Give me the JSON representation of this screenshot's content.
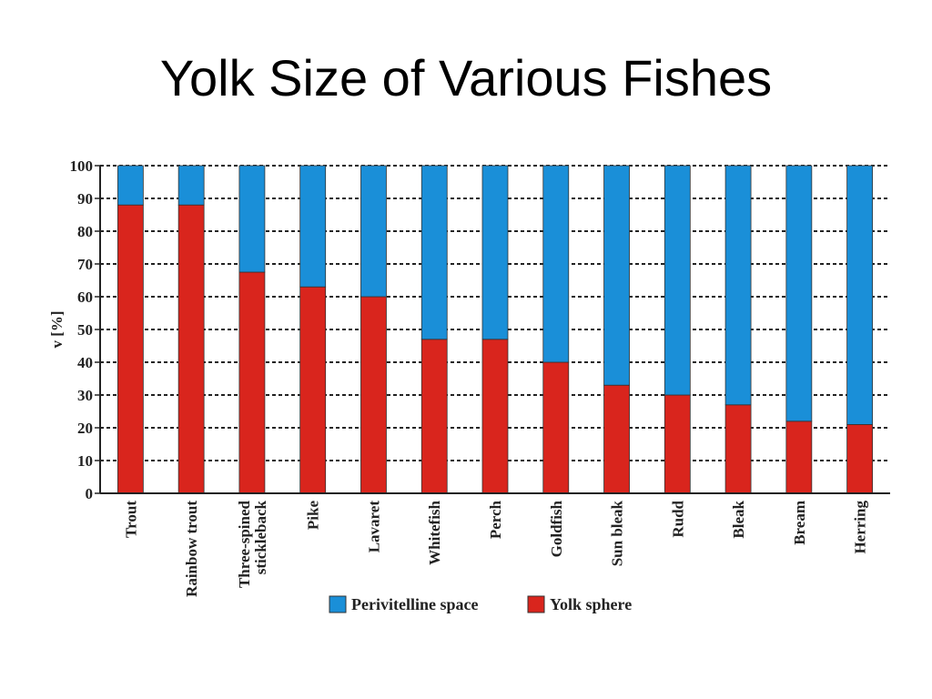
{
  "slide": {
    "title": "Yolk Size of Various Fishes"
  },
  "colors": {
    "perivitelline": "#1a8fd8",
    "yolk": "#d9251d",
    "grid": "#222222",
    "axis": "#222222"
  },
  "chart_data": {
    "type": "bar",
    "stacked": true,
    "title": "",
    "xlabel": "",
    "ylabel": "v [%]",
    "ylim": [
      0,
      100
    ],
    "yticks": [
      0,
      10,
      20,
      30,
      40,
      50,
      60,
      70,
      80,
      90,
      100
    ],
    "grid": "horizontal dashed",
    "legend_position": "bottom",
    "categories": [
      "Trout",
      "Rainbow trout",
      "Three-spined stickleback",
      "Pike",
      "Lavaret",
      "Whitefish",
      "Perch",
      "Goldfish",
      "Sun bleak",
      "Rudd",
      "Bleak",
      "Bream",
      "Herring"
    ],
    "category_lines": [
      [
        "Trout"
      ],
      [
        "Rainbow trout"
      ],
      [
        "Three-spined",
        "stickleback"
      ],
      [
        "Pike"
      ],
      [
        "Lavaret"
      ],
      [
        "Whitefish"
      ],
      [
        "Perch"
      ],
      [
        "Goldfish"
      ],
      [
        "Sun bleak"
      ],
      [
        "Rudd"
      ],
      [
        "Bleak"
      ],
      [
        "Bream"
      ],
      [
        "Herring"
      ]
    ],
    "series": [
      {
        "name": "Yolk sphere",
        "color": "#d9251d",
        "values": [
          88,
          88,
          67.5,
          63,
          60,
          47,
          47,
          40,
          33,
          30,
          27,
          22,
          21
        ]
      },
      {
        "name": "Perivitelline space",
        "color": "#1a8fd8",
        "values": [
          12,
          12,
          32.5,
          37,
          40,
          53,
          53,
          60,
          67,
          70,
          73,
          78,
          79
        ]
      }
    ],
    "legend_order": [
      "Perivitelline space",
      "Yolk sphere"
    ]
  }
}
